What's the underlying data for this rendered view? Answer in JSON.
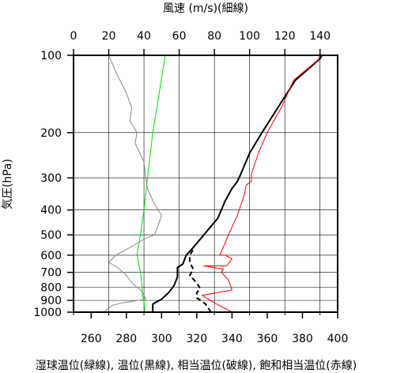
{
  "chart_data": {
    "type": "line",
    "title": "風速 (m/s)(細線)",
    "xlabel": "湿球温位(緑線), 温位(黒線), 相当温位(破線), 飽和相当温位(赤線)",
    "ylabel": "気圧(hPa)",
    "y_scale": "log",
    "y_reversed": true,
    "ylim": [
      1000,
      100
    ],
    "y_ticks": [
      100,
      200,
      300,
      400,
      500,
      600,
      700,
      800,
      900,
      1000
    ],
    "y_tick_labels": [
      "100",
      "200",
      "300",
      "400",
      "500",
      "600",
      "700",
      "800",
      "900",
      "1000"
    ],
    "x_bottom_lim": [
      250,
      400
    ],
    "x_bottom_ticks": [
      260,
      280,
      300,
      320,
      340,
      360,
      380,
      400
    ],
    "x_bottom_tick_labels": [
      "260",
      "280",
      "300",
      "320",
      "340",
      "360",
      "380",
      "400"
    ],
    "x_top_lim": [
      0,
      150
    ],
    "x_top_ticks": [
      0,
      20,
      40,
      60,
      80,
      100,
      120,
      140
    ],
    "x_top_tick_labels": [
      "0",
      "20",
      "40",
      "60",
      "80",
      "100",
      "120",
      "140"
    ],
    "grid": true,
    "series": [
      {
        "name": "湿球温位",
        "color": "#00dd00",
        "style": "solid",
        "axis": "bottom",
        "points": [
          [
            290.5,
            1000
          ],
          [
            290,
            900
          ],
          [
            289,
            850
          ],
          [
            289,
            800
          ],
          [
            288,
            700
          ],
          [
            286,
            600
          ],
          [
            288,
            500
          ],
          [
            290,
            400
          ],
          [
            292,
            300
          ],
          [
            295,
            200
          ],
          [
            298,
            150
          ],
          [
            302,
            100
          ]
        ]
      },
      {
        "name": "温位",
        "color": "#000000",
        "style": "solid",
        "axis": "bottom",
        "points": [
          [
            295,
            1000
          ],
          [
            295,
            930
          ],
          [
            300,
            890
          ],
          [
            304,
            840
          ],
          [
            307,
            790
          ],
          [
            309,
            730
          ],
          [
            309,
            670
          ],
          [
            312,
            650
          ],
          [
            314,
            600
          ],
          [
            316,
            580
          ],
          [
            318,
            560
          ],
          [
            324,
            500
          ],
          [
            332,
            430
          ],
          [
            336,
            370
          ],
          [
            340,
            330
          ],
          [
            343,
            310
          ],
          [
            345,
            290
          ],
          [
            350,
            240
          ],
          [
            357,
            200
          ],
          [
            366,
            160
          ],
          [
            376,
            125
          ],
          [
            390,
            103
          ],
          [
            391,
            100
          ]
        ]
      },
      {
        "name": "相当温位",
        "color": "#000000",
        "style": "dashed",
        "axis": "bottom",
        "points": [
          [
            328,
            1000
          ],
          [
            325,
            930
          ],
          [
            320,
            880
          ],
          [
            320,
            840
          ],
          [
            322,
            810
          ],
          [
            320,
            770
          ],
          [
            316,
            720
          ],
          [
            318,
            680
          ],
          [
            316,
            640
          ],
          [
            316,
            600
          ],
          [
            318,
            570
          ]
        ]
      },
      {
        "name": "飽和相当温位",
        "color": "#ff0000",
        "style": "solid",
        "axis": "bottom",
        "points": [
          [
            340,
            1000
          ],
          [
            330,
            920
          ],
          [
            323,
            860
          ],
          [
            340,
            820
          ],
          [
            338,
            750
          ],
          [
            334,
            700
          ],
          [
            335,
            680
          ],
          [
            324,
            660
          ],
          [
            337,
            660
          ],
          [
            340,
            620
          ],
          [
            336,
            600
          ],
          [
            333,
            600
          ],
          [
            336,
            540
          ],
          [
            338,
            500
          ],
          [
            343,
            420
          ],
          [
            347,
            350
          ],
          [
            348,
            320
          ],
          [
            351,
            310
          ],
          [
            351,
            290
          ],
          [
            355,
            240
          ],
          [
            360,
            200
          ],
          [
            368,
            160
          ],
          [
            375,
            125
          ],
          [
            389,
            104
          ],
          [
            390,
            100
          ]
        ]
      },
      {
        "name": "風速",
        "color": "#888888",
        "style": "solid",
        "axis": "top",
        "points": [
          [
            17,
            1000
          ],
          [
            22,
            940
          ],
          [
            28,
            920
          ],
          [
            41,
            890
          ],
          [
            39,
            830
          ],
          [
            34,
            780
          ],
          [
            30,
            720
          ],
          [
            25,
            670
          ],
          [
            20,
            640
          ],
          [
            24,
            600
          ],
          [
            30,
            570
          ],
          [
            36,
            540
          ],
          [
            40,
            520
          ],
          [
            46,
            500
          ],
          [
            48,
            460
          ],
          [
            50,
            420
          ],
          [
            46,
            380
          ],
          [
            42,
            330
          ],
          [
            41,
            300
          ],
          [
            40,
            260
          ],
          [
            35,
            220
          ],
          [
            36,
            200
          ],
          [
            32,
            180
          ],
          [
            33,
            160
          ],
          [
            30,
            140
          ],
          [
            25,
            120
          ],
          [
            20,
            100
          ]
        ]
      }
    ]
  }
}
